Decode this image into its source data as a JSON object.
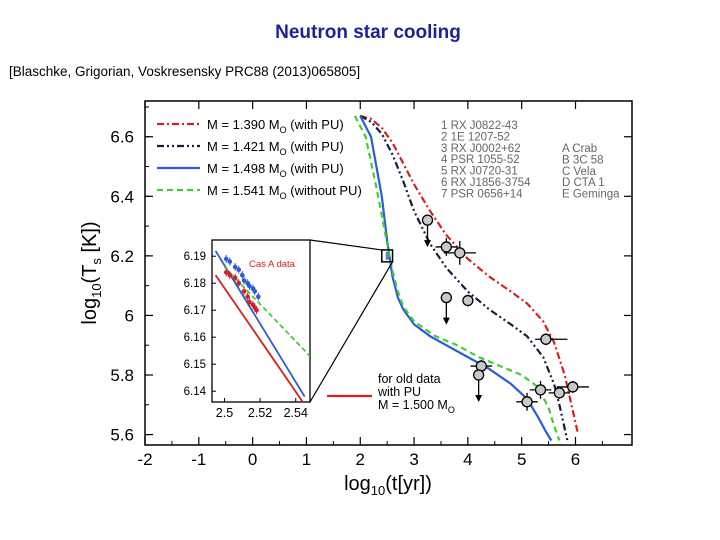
{
  "slide": {
    "title": "Neutron star cooling",
    "citation": "[Blaschke, Grigorian, Voskresensky PRC88 (2013)065805]"
  },
  "chart_data": {
    "type": "line",
    "xlabel_main": "log",
    "xlabel_sub": "10",
    "xlabel_rest": "(t[yr])",
    "ylabel_main": "log",
    "ylabel_sub": "10",
    "ylabel_paren": "(T",
    "ylabel_sub2": "s",
    "ylabel_rest": " [K])",
    "xlim": [
      -2,
      7
    ],
    "ylim": [
      5.58,
      6.68
    ],
    "xticks": [
      -2,
      -1,
      0,
      1,
      2,
      3,
      4,
      5,
      6
    ],
    "yticks": [
      5.6,
      5.8,
      6.0,
      6.2,
      6.4,
      6.6
    ],
    "grid": false,
    "legend_position": "top-left",
    "series": [
      {
        "name": "M = 1.390 M",
        "name_sub": "O",
        "name_tail": " (with PU)",
        "color": "#d42020",
        "dash": "7,3,2,3",
        "x": [
          2.0,
          2.2,
          2.4,
          2.6,
          2.8,
          3.0,
          3.3,
          3.6,
          4.0,
          4.4,
          4.8,
          5.1,
          5.4,
          5.6,
          5.8,
          5.9,
          6.0,
          6.05
        ],
        "y": [
          6.67,
          6.66,
          6.63,
          6.58,
          6.51,
          6.44,
          6.35,
          6.27,
          6.19,
          6.13,
          6.08,
          6.04,
          5.98,
          5.91,
          5.8,
          5.72,
          5.64,
          5.6
        ]
      },
      {
        "name": "M = 1.421 M",
        "name_sub": "O",
        "name_tail": " (with PU)",
        "color": "#1a1a3a",
        "dash": "7,3,2,3,2,3",
        "x": [
          2.0,
          2.2,
          2.4,
          2.6,
          2.8,
          3.0,
          3.3,
          3.6,
          4.0,
          4.4,
          4.8,
          5.1,
          5.4,
          5.6,
          5.7,
          5.8,
          5.85
        ],
        "y": [
          6.67,
          6.65,
          6.61,
          6.54,
          6.45,
          6.35,
          6.24,
          6.16,
          6.08,
          6.02,
          5.97,
          5.93,
          5.86,
          5.77,
          5.7,
          5.62,
          5.58
        ]
      },
      {
        "name": "M = 1.498 M",
        "name_sub": "O",
        "name_tail": " (with PU)",
        "color": "#2a5bd8",
        "dash": "",
        "x": [
          2.0,
          2.2,
          2.4,
          2.5,
          2.6,
          2.7,
          2.8,
          3.0,
          3.3,
          3.6,
          4.0,
          4.4,
          4.8,
          5.1,
          5.3,
          5.45,
          5.55
        ],
        "y": [
          6.67,
          6.6,
          6.4,
          6.25,
          6.13,
          6.06,
          6.02,
          5.97,
          5.93,
          5.9,
          5.86,
          5.82,
          5.77,
          5.72,
          5.66,
          5.61,
          5.58
        ]
      },
      {
        "name": "M = 1.541 M",
        "name_sub": "O",
        "name_tail": " (without PU)",
        "color": "#44cc33",
        "dash": "6,4",
        "x": [
          1.9,
          2.1,
          2.3,
          2.5,
          2.6,
          2.7,
          2.8,
          3.0,
          3.4,
          3.8,
          4.2,
          4.6,
          5.0,
          5.3,
          5.5,
          5.6,
          5.7
        ],
        "y": [
          6.67,
          6.6,
          6.43,
          6.24,
          6.15,
          6.08,
          6.03,
          5.98,
          5.93,
          5.9,
          5.86,
          5.83,
          5.8,
          5.76,
          5.69,
          5.63,
          5.58
        ]
      }
    ],
    "sources": [
      "1 RX J0822-43",
      "2 1E 1207-52",
      "3 RX J0002+62",
      "4 PSR 1055-52",
      "5 RX J0720-31",
      "6 RX J1856-3754",
      "7 PSR 0656+14"
    ],
    "sources_b": [
      "A Crab",
      "B 3C 58",
      "C Vela",
      "D CTA 1",
      "E Geminga"
    ],
    "observations": [
      {
        "x": 3.25,
        "y": 6.32,
        "xerr": [
          0.0,
          0.0
        ],
        "yerr": [
          0.0,
          0.0
        ],
        "upper_limit": true
      },
      {
        "x": 3.6,
        "y": 6.23,
        "xerr": [
          0.2,
          0.2
        ],
        "yerr": [
          0.03,
          0.03
        ],
        "upper_limit": false
      },
      {
        "x": 3.85,
        "y": 6.21,
        "xerr": [
          0.3,
          0.3
        ],
        "yerr": [
          0.04,
          0.04
        ],
        "upper_limit": false
      },
      {
        "x": 3.6,
        "y": 6.06,
        "xerr": [
          0.0,
          0.0
        ],
        "yerr": [
          0.0,
          0.0
        ],
        "upper_limit": true
      },
      {
        "x": 4.0,
        "y": 6.05,
        "xerr": [
          0.0,
          0.0
        ],
        "yerr": [
          0.02,
          0.02
        ],
        "upper_limit": false
      },
      {
        "x": 5.45,
        "y": 5.92,
        "xerr": [
          0.2,
          0.4
        ],
        "yerr": [
          0.02,
          0.02
        ],
        "upper_limit": false
      },
      {
        "x": 4.25,
        "y": 5.83,
        "xerr": [
          0.2,
          0.2
        ],
        "yerr": [
          0.02,
          0.02
        ],
        "upper_limit": false
      },
      {
        "x": 4.2,
        "y": 5.8,
        "xerr": [
          0.0,
          0.0
        ],
        "yerr": [
          0.0,
          0.0
        ],
        "upper_limit": true
      },
      {
        "x": 5.35,
        "y": 5.75,
        "xerr": [
          0.2,
          0.2
        ],
        "yerr": [
          0.03,
          0.03
        ],
        "upper_limit": false
      },
      {
        "x": 5.1,
        "y": 5.71,
        "xerr": [
          0.2,
          0.2
        ],
        "yerr": [
          0.03,
          0.03
        ],
        "upper_limit": false
      },
      {
        "x": 5.7,
        "y": 5.74,
        "xerr": [
          0.2,
          0.2
        ],
        "yerr": [
          0.02,
          0.02
        ],
        "upper_limit": false
      },
      {
        "x": 5.95,
        "y": 5.76,
        "xerr": [
          0.3,
          0.3
        ],
        "yerr": [
          0.02,
          0.02
        ],
        "upper_limit": false
      }
    ],
    "highlight_box": {
      "x": [
        2.4,
        2.6
      ],
      "y": [
        6.18,
        6.22
      ],
      "color": "#2a5bd8"
    },
    "old_data_note": {
      "lines": [
        "for old data",
        "with PU"
      ],
      "mass_line": "M = 1.500 M",
      "mass_sub": "O",
      "color": "#d42020"
    },
    "inset": {
      "label": "Cas A data",
      "xlim": [
        2.493,
        2.548
      ],
      "ylim": [
        6.136,
        6.196
      ],
      "xticks": [
        2.5,
        2.52,
        2.54
      ],
      "yticks": [
        6.19,
        6.18,
        6.17,
        6.16,
        6.15,
        6.14
      ],
      "curves": [
        {
          "color": "#d42020",
          "dash": "",
          "x": [
            2.495,
            2.545
          ],
          "y": [
            6.183,
            6.135
          ]
        },
        {
          "color": "#2a5bd8",
          "dash": "",
          "x": [
            2.495,
            2.545
          ],
          "y": [
            6.192,
            6.138
          ]
        },
        {
          "color": "#44cc33",
          "dash": "5,3",
          "x": [
            2.5,
            2.548
          ],
          "y": [
            6.186,
            6.153
          ]
        }
      ],
      "blue_points": [
        {
          "x": 2.501,
          "y": 6.189
        },
        {
          "x": 2.503,
          "y": 6.188
        },
        {
          "x": 2.506,
          "y": 6.186
        },
        {
          "x": 2.508,
          "y": 6.185
        },
        {
          "x": 2.51,
          "y": 6.183
        },
        {
          "x": 2.511,
          "y": 6.181
        },
        {
          "x": 2.513,
          "y": 6.18
        },
        {
          "x": 2.514,
          "y": 6.179
        },
        {
          "x": 2.516,
          "y": 6.178
        },
        {
          "x": 2.517,
          "y": 6.177
        },
        {
          "x": 2.519,
          "y": 6.175
        }
      ],
      "red_points": [
        {
          "x": 2.501,
          "y": 6.184
        },
        {
          "x": 2.503,
          "y": 6.183
        },
        {
          "x": 2.506,
          "y": 6.182
        },
        {
          "x": 2.508,
          "y": 6.18
        },
        {
          "x": 2.511,
          "y": 6.177
        },
        {
          "x": 2.513,
          "y": 6.175
        },
        {
          "x": 2.514,
          "y": 6.173
        },
        {
          "x": 2.516,
          "y": 6.172
        },
        {
          "x": 2.517,
          "y": 6.171
        },
        {
          "x": 2.518,
          "y": 6.17
        }
      ]
    }
  }
}
